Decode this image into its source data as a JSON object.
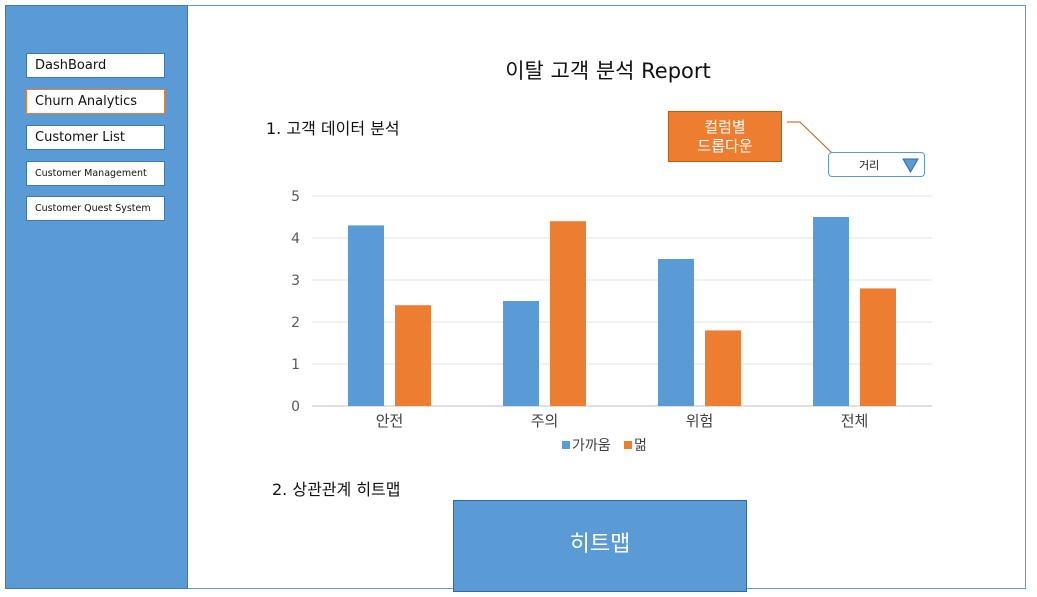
{
  "sidebar": {
    "items": [
      {
        "label": "DashBoard"
      },
      {
        "label": "Churn Analytics"
      },
      {
        "label": "Customer List"
      },
      {
        "label": "Customer Management"
      },
      {
        "label": "Customer Quest System"
      }
    ]
  },
  "page": {
    "title": "이탈 고객 분석 Report",
    "section1": "1. 고객 데이터 분석",
    "section2": "2. 상관관계 히트맵"
  },
  "callout": {
    "line1": "컬럼별",
    "line2": "드롭다운"
  },
  "dropdown": {
    "selected": "거리",
    "icon": "triangle-down-icon"
  },
  "heatmap": {
    "label": "히트맵"
  },
  "colors": {
    "sidebar": "#5b9bd5",
    "series1": "#5b9bd5",
    "series2": "#ed7d31",
    "accent": "#ed7d31"
  },
  "chart_data": {
    "type": "bar",
    "categories": [
      "안전",
      "주의",
      "위험",
      "전체"
    ],
    "series": [
      {
        "name": "가까움",
        "values": [
          4.3,
          2.5,
          3.5,
          4.5
        ]
      },
      {
        "name": "멂",
        "values": [
          2.4,
          4.4,
          1.8,
          2.8
        ]
      }
    ],
    "ylim": [
      0,
      5
    ],
    "yticks": [
      0,
      1,
      2,
      3,
      4,
      5
    ],
    "grid": true,
    "legend": "bottom"
  }
}
